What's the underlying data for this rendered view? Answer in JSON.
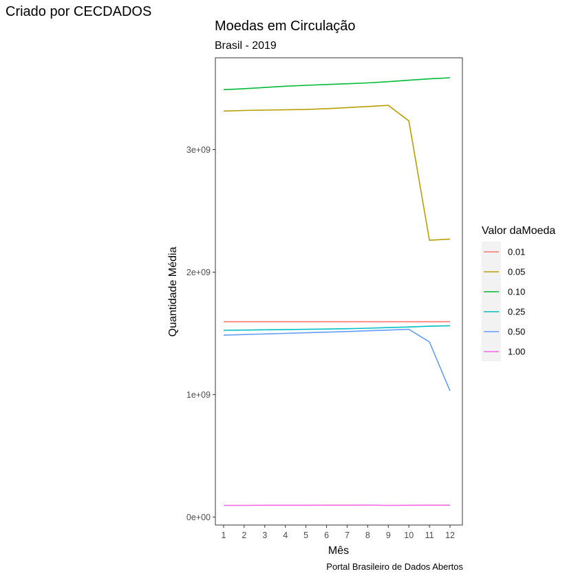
{
  "credit": "Criado por CECDADOS",
  "chart_data": {
    "type": "line",
    "title": "Moedas em Circulação",
    "subtitle": "Brasil - 2019",
    "xlabel": "Mês",
    "ylabel": "Quantidade Média",
    "caption": "Portal Brasileiro de Dados Abertos",
    "x": [
      1,
      2,
      3,
      4,
      5,
      6,
      7,
      8,
      9,
      10,
      11,
      12
    ],
    "xlim": [
      0.6,
      12.6
    ],
    "ylim": [
      -65000000,
      3750000000
    ],
    "yticks": [
      0,
      1000000000,
      2000000000,
      3000000000
    ],
    "ytick_labels": [
      "0e+00",
      "1e+09",
      "2e+09",
      "3e+09"
    ],
    "grid": false,
    "legend_title": "Valor daMoeda",
    "legend_position": "right",
    "series": [
      {
        "name": "0.01",
        "color": "#F8766D",
        "values": [
          1595000000,
          1595000000,
          1595000000,
          1595000000,
          1595000000,
          1595000000,
          1595000000,
          1595000000,
          1595000000,
          1595000000,
          1595000000,
          1595000000
        ]
      },
      {
        "name": "0.05",
        "color": "#B79F00",
        "values": [
          3315000000,
          3320000000,
          3323000000,
          3325000000,
          3328000000,
          3335000000,
          3343000000,
          3352000000,
          3362000000,
          3235000000,
          2260000000,
          2270000000
        ]
      },
      {
        "name": "0.10",
        "color": "#00BA38",
        "values": [
          3490000000,
          3498000000,
          3508000000,
          3518000000,
          3525000000,
          3532000000,
          3538000000,
          3545000000,
          3555000000,
          3567000000,
          3578000000,
          3587000000
        ]
      },
      {
        "name": "0.25",
        "color": "#00BFC4",
        "values": [
          1525000000,
          1527000000,
          1529000000,
          1531000000,
          1533000000,
          1535000000,
          1538000000,
          1542000000,
          1547000000,
          1552000000,
          1558000000,
          1562000000
        ]
      },
      {
        "name": "0.50",
        "color": "#619CFF",
        "values": [
          1485000000,
          1490000000,
          1495000000,
          1500000000,
          1505000000,
          1510000000,
          1515000000,
          1521000000,
          1527000000,
          1533000000,
          1430000000,
          1030000000
        ]
      },
      {
        "name": "1.00",
        "color": "#F564E3",
        "values": [
          95000000,
          95000000,
          96000000,
          96000000,
          96000000,
          97000000,
          97000000,
          98000000,
          95000000,
          96000000,
          97000000,
          97000000
        ]
      }
    ]
  }
}
